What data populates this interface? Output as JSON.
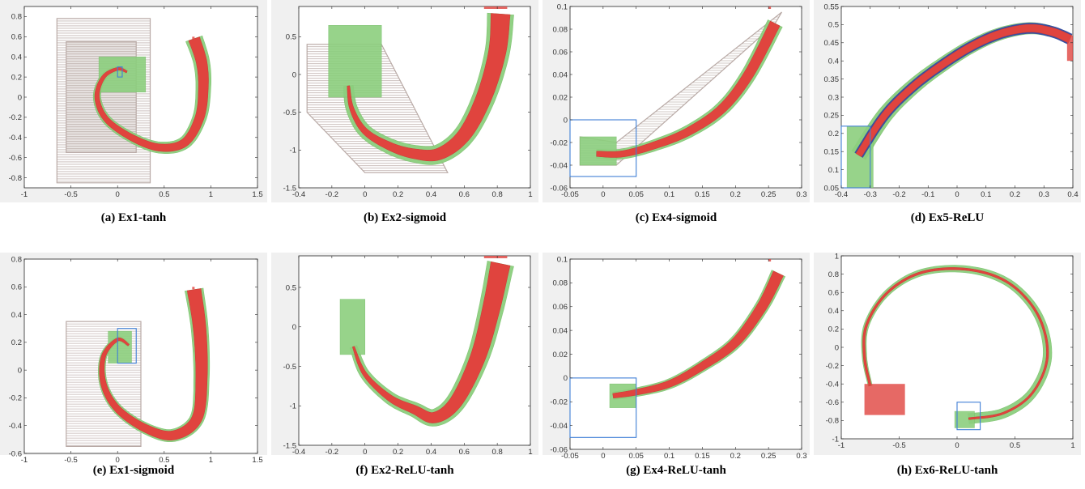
{
  "colors": {
    "reach_fill": "#e0443e",
    "reach_edge": "#c93a35",
    "bloat": "#8ccf7e",
    "bloat_edge": "#7cc26e",
    "baseline": "#b9aaa6",
    "init_box": "#3f7fd6",
    "relu_outline": "#3a4fa0",
    "axes_bg": "#f0f0f0",
    "plot_bg": "#ffffff"
  },
  "chart_data": [
    {
      "id": "a",
      "caption": "(a) Ex1-tanh",
      "type": "scatter",
      "xlim": [
        -1,
        1.5
      ],
      "ylim": [
        -0.9,
        0.9
      ],
      "xticks": [
        -1,
        -0.5,
        0,
        0.5,
        1,
        1.5
      ],
      "yticks": [
        -0.8,
        -0.6,
        -0.4,
        -0.2,
        0,
        0.2,
        0.4,
        0.6,
        0.8
      ],
      "xtick_labels": [
        "-1",
        "-0.5",
        "0",
        "0.5",
        "1",
        "1.5"
      ],
      "ytick_labels": [
        "-0.8",
        "-0.6",
        "-0.4",
        "-0.2",
        "0",
        "0.2",
        "0.4",
        "0.6",
        "0.8"
      ],
      "initial_set": [
        [
          0,
          0.05
        ],
        [
          0.2,
          0.3
        ]
      ],
      "trajectory": [
        [
          0.1,
          0.25
        ],
        [
          0,
          0.28
        ],
        [
          -0.15,
          0.2
        ],
        [
          -0.22,
          0
        ],
        [
          -0.12,
          -0.22
        ],
        [
          0.15,
          -0.4
        ],
        [
          0.45,
          -0.5
        ],
        [
          0.72,
          -0.45
        ],
        [
          0.88,
          -0.2
        ],
        [
          0.92,
          0.1
        ],
        [
          0.9,
          0.35
        ],
        [
          0.82,
          0.58
        ]
      ],
      "tube_width": [
        0.01,
        0.12
      ],
      "bloat_width": [
        0.04,
        0.18
      ],
      "bloat_box": [
        [
          -0.2,
          0.3
        ],
        [
          0.05,
          0.4
        ]
      ],
      "baseline_envelope": [
        [
          [
            -0.65,
            0.78
          ],
          [
            0.35,
            0.78
          ],
          [
            0.35,
            -0.85
          ],
          [
            -0.65,
            -0.85
          ]
        ],
        [
          [
            -0.55,
            0.55
          ],
          [
            0.2,
            0.55
          ],
          [
            0.2,
            -0.55
          ],
          [
            -0.55,
            -0.55
          ]
        ]
      ],
      "tip_box": [
        [
          0.8,
          0.55
        ],
        [
          0.9,
          0.6
        ]
      ]
    },
    {
      "id": "b",
      "caption": "(b) Ex2-sigmoid",
      "type": "scatter",
      "xlim": [
        -0.4,
        1
      ],
      "ylim": [
        -1.5,
        0.9
      ],
      "xticks": [
        -0.4,
        -0.2,
        0,
        0.2,
        0.4,
        0.6,
        0.8,
        1
      ],
      "yticks": [
        -1.5,
        -1,
        -0.5,
        0,
        0.5
      ],
      "xtick_labels": [
        "-0.4",
        "-0.2",
        "0",
        "0.2",
        "0.4",
        "0.6",
        "0.8",
        "1"
      ],
      "ytick_labels": [
        "-1.5",
        "-1",
        "-0.5",
        "0",
        "0.5"
      ],
      "initial_set": [
        [
          -0.3,
          -0.35
        ],
        [
          0.1,
          0.5
        ]
      ],
      "trajectory": [
        [
          -0.1,
          -0.15
        ],
        [
          -0.08,
          -0.45
        ],
        [
          0,
          -0.75
        ],
        [
          0.15,
          -0.95
        ],
        [
          0.3,
          -1.05
        ],
        [
          0.45,
          -1.05
        ],
        [
          0.6,
          -0.8
        ],
        [
          0.72,
          -0.3
        ],
        [
          0.8,
          0.3
        ],
        [
          0.82,
          0.8
        ]
      ],
      "tube_width": [
        0.02,
        0.16
      ],
      "bloat_width": [
        0.08,
        0.22
      ],
      "bloat_box": [
        [
          -0.22,
          0.1
        ],
        [
          -0.3,
          0.65
        ]
      ],
      "baseline_envelope": [
        [
          [
            -0.35,
            0.4
          ],
          [
            0.1,
            0.4
          ],
          [
            0.5,
            -1.3
          ],
          [
            0.0,
            -1.3
          ],
          [
            -0.35,
            -0.5
          ]
        ]
      ],
      "tip_box": [
        [
          0.72,
          0.86
        ],
        [
          0.9,
          0.9
        ]
      ]
    },
    {
      "id": "c",
      "caption": "(c) Ex4-sigmoid",
      "type": "scatter",
      "xlim": [
        -0.05,
        0.3
      ],
      "ylim": [
        -0.06,
        0.1
      ],
      "xticks": [
        -0.05,
        0,
        0.05,
        0.1,
        0.15,
        0.2,
        0.25,
        0.3
      ],
      "yticks": [
        -0.06,
        -0.04,
        -0.02,
        0,
        0.02,
        0.04,
        0.06,
        0.08,
        0.1
      ],
      "xtick_labels": [
        "-0.05",
        "0",
        "0.05",
        "0.1",
        "0.15",
        "0.2",
        "0.25",
        "0.3"
      ],
      "ytick_labels": [
        "-0.06",
        "-0.04",
        "-0.02",
        "0",
        "0.02",
        "0.04",
        "0.06",
        "0.08",
        "0.1"
      ],
      "initial_set": [
        [
          -0.05,
          0.05
        ],
        [
          -0.05,
          0
        ]
      ],
      "trajectory": [
        [
          -0.01,
          -0.03
        ],
        [
          0.03,
          -0.03
        ],
        [
          0.08,
          -0.022
        ],
        [
          0.13,
          -0.01
        ],
        [
          0.18,
          0.01
        ],
        [
          0.22,
          0.04
        ],
        [
          0.26,
          0.085
        ]
      ],
      "tube_width": [
        0.006,
        0.012
      ],
      "bloat_width": [
        0.01,
        0.018
      ],
      "bloat_box": [
        [
          -0.035,
          0.02
        ],
        [
          -0.04,
          -0.015
        ]
      ],
      "baseline_envelope": [
        [
          [
            -0.035,
            -0.015
          ],
          [
            0.02,
            -0.02
          ],
          [
            0.27,
            0.095
          ],
          [
            0.26,
            0.085
          ],
          [
            0.02,
            -0.04
          ],
          [
            -0.035,
            -0.04
          ]
        ]
      ],
      "tip_box": [
        [
          0.25,
          0.09
        ],
        [
          0.27,
          0.1
        ]
      ]
    },
    {
      "id": "d",
      "caption": "(d) Ex5-ReLU",
      "type": "scatter",
      "xlim": [
        -0.4,
        0.4
      ],
      "ylim": [
        0.05,
        0.55
      ],
      "xticks": [
        -0.4,
        -0.3,
        -0.2,
        -0.1,
        0,
        0.1,
        0.2,
        0.3,
        0.4
      ],
      "yticks": [
        0.05,
        0.1,
        0.15,
        0.2,
        0.25,
        0.3,
        0.35,
        0.4,
        0.45,
        0.5,
        0.55
      ],
      "xtick_labels": [
        "-0.4",
        "-0.3",
        "-0.2",
        "-0.1",
        "0",
        "0.1",
        "0.2",
        "0.3",
        "0.4"
      ],
      "ytick_labels": [
        "0.05",
        "0.1",
        "0.15",
        "0.2",
        "0.25",
        "0.3",
        "0.35",
        "0.4",
        "0.45",
        "0.5",
        "0.55"
      ],
      "initial_set": [
        [
          -0.4,
          -0.3
        ],
        [
          0.05,
          0.22
        ]
      ],
      "trajectory": [
        [
          -0.34,
          0.14
        ],
        [
          -0.25,
          0.25
        ],
        [
          -0.15,
          0.33
        ],
        [
          -0.05,
          0.39
        ],
        [
          0.05,
          0.44
        ],
        [
          0.15,
          0.475
        ],
        [
          0.25,
          0.49
        ],
        [
          0.33,
          0.48
        ],
        [
          0.39,
          0.46
        ]
      ],
      "tube_width": [
        0.02,
        0.025
      ],
      "bloat_width": [
        0.05,
        0.03
      ],
      "bloat_box": [
        [
          -0.38,
          -0.29
        ],
        [
          0.05,
          0.22
        ]
      ],
      "baseline_envelope": [],
      "tip_box": [
        [
          0.38,
          0.45
        ],
        [
          0.4,
          0.47
        ]
      ]
    },
    {
      "id": "e",
      "caption": "(e) Ex1-sigmoid",
      "type": "scatter",
      "xlim": [
        -1,
        1.5
      ],
      "ylim": [
        -0.6,
        0.8
      ],
      "xticks": [
        -1,
        -0.5,
        0,
        0.5,
        1,
        1.5
      ],
      "yticks": [
        -0.6,
        -0.4,
        -0.2,
        0,
        0.2,
        0.4,
        0.6,
        0.8
      ],
      "xtick_labels": [
        "-1",
        "-0.5",
        "0",
        "0.5",
        "1",
        "1.5"
      ],
      "ytick_labels": [
        "-0.6",
        "-0.4",
        "-0.2",
        "0",
        "0.2",
        "0.4",
        "0.6",
        "0.8"
      ],
      "initial_set": [
        [
          0,
          0.2
        ],
        [
          0.05,
          0.3
        ]
      ],
      "trajectory": [
        [
          0.12,
          0.18
        ],
        [
          0,
          0.22
        ],
        [
          -0.15,
          0.1
        ],
        [
          -0.15,
          -0.1
        ],
        [
          0,
          -0.28
        ],
        [
          0.3,
          -0.42
        ],
        [
          0.6,
          -0.47
        ],
        [
          0.85,
          -0.35
        ],
        [
          0.9,
          -0.05
        ],
        [
          0.88,
          0.3
        ],
        [
          0.82,
          0.58
        ]
      ],
      "tube_width": [
        0.01,
        0.12
      ],
      "bloat_width": [
        0.03,
        0.16
      ],
      "bloat_box": [
        [
          -0.1,
          0.15
        ],
        [
          0.05,
          0.28
        ]
      ],
      "baseline_envelope": [
        [
          [
            -0.55,
            0.35
          ],
          [
            0.25,
            0.35
          ],
          [
            0.25,
            -0.55
          ],
          [
            -0.55,
            -0.55
          ]
        ]
      ],
      "tip_box": [
        [
          0.8,
          0.55
        ],
        [
          0.9,
          0.6
        ]
      ]
    },
    {
      "id": "f",
      "caption": "(f) Ex2-ReLU-tanh",
      "type": "scatter",
      "xlim": [
        -0.4,
        1
      ],
      "ylim": [
        -1.5,
        0.9
      ],
      "xticks": [
        -0.4,
        -0.2,
        0,
        0.2,
        0.4,
        0.6,
        0.8,
        1
      ],
      "yticks": [
        -1.5,
        -1,
        -0.5,
        0,
        0.5
      ],
      "xtick_labels": [
        "-0.4",
        "-0.2",
        "0",
        "0.2",
        "0.4",
        "0.6",
        "0.8",
        "1"
      ],
      "ytick_labels": [
        "-1.5",
        "-1",
        "-0.5",
        "0",
        "0.5"
      ],
      "initial_set": [
        [
          -0.3,
          -0.35
        ],
        [
          0.1,
          0.5
        ]
      ],
      "trajectory": [
        [
          -0.07,
          -0.25
        ],
        [
          0,
          -0.6
        ],
        [
          0.15,
          -0.9
        ],
        [
          0.3,
          -1.05
        ],
        [
          0.42,
          -1.15
        ],
        [
          0.55,
          -0.95
        ],
        [
          0.68,
          -0.4
        ],
        [
          0.76,
          0.2
        ],
        [
          0.82,
          0.8
        ]
      ],
      "tube_width": [
        0.01,
        0.16
      ],
      "bloat_width": [
        0.06,
        0.22
      ],
      "bloat_box": [
        [
          -0.15,
          0.0
        ],
        [
          -0.35,
          0.35
        ]
      ],
      "baseline_envelope": [],
      "tip_box": [
        [
          0.72,
          0.86
        ],
        [
          0.9,
          0.9
        ]
      ]
    },
    {
      "id": "g",
      "caption": "(g) Ex4-ReLU-tanh",
      "type": "scatter",
      "xlim": [
        -0.05,
        0.3
      ],
      "ylim": [
        -0.06,
        0.1
      ],
      "xticks": [
        -0.05,
        0,
        0.05,
        0.1,
        0.15,
        0.2,
        0.25,
        0.3
      ],
      "yticks": [
        -0.06,
        -0.04,
        -0.02,
        0,
        0.02,
        0.04,
        0.06,
        0.08,
        0.1
      ],
      "xtick_labels": [
        "-0.05",
        "0",
        "0.05",
        "0.1",
        "0.15",
        "0.2",
        "0.25",
        "0.3"
      ],
      "ytick_labels": [
        "-0.06",
        "-0.04",
        "-0.02",
        "0",
        "0.02",
        "0.04",
        "0.06",
        "0.08",
        "0.1"
      ],
      "initial_set": [
        [
          -0.05,
          0.05
        ],
        [
          -0.05,
          0
        ]
      ],
      "trajectory": [
        [
          0.015,
          -0.015
        ],
        [
          0.05,
          -0.012
        ],
        [
          0.1,
          -0.005
        ],
        [
          0.15,
          0.01
        ],
        [
          0.2,
          0.03
        ],
        [
          0.24,
          0.06
        ],
        [
          0.265,
          0.088
        ]
      ],
      "tube_width": [
        0.005,
        0.012
      ],
      "bloat_width": [
        0.008,
        0.016
      ],
      "bloat_box": [
        [
          0.01,
          0.05
        ],
        [
          -0.025,
          -0.005
        ]
      ],
      "baseline_envelope": [],
      "tip_box": [
        [
          0.25,
          0.09
        ],
        [
          0.27,
          0.1
        ]
      ]
    },
    {
      "id": "h",
      "caption": "(h) Ex6-ReLU-tanh",
      "type": "scatter",
      "xlim": [
        -1,
        1
      ],
      "ylim": [
        -1,
        1
      ],
      "xticks": [
        -1,
        -0.5,
        0,
        0.5,
        1
      ],
      "yticks": [
        -1,
        -0.8,
        -0.6,
        -0.4,
        -0.2,
        0,
        0.2,
        0.4,
        0.6,
        0.8,
        1
      ],
      "xtick_labels": [
        "-1",
        "-0.5",
        "0",
        "0.5",
        "1"
      ],
      "ytick_labels": [
        "-1",
        "-0.8",
        "-0.6",
        "-0.4",
        "-0.2",
        "0",
        "0.2",
        "0.4",
        "0.6",
        "0.8",
        "1"
      ],
      "initial_set": [
        [
          0,
          0.2
        ],
        [
          -0.9,
          -0.6
        ]
      ],
      "trajectory": [
        [
          0.1,
          -0.78
        ],
        [
          0.4,
          -0.72
        ],
        [
          0.65,
          -0.5
        ],
        [
          0.78,
          -0.1
        ],
        [
          0.7,
          0.35
        ],
        [
          0.45,
          0.7
        ],
        [
          0.1,
          0.85
        ],
        [
          -0.3,
          0.82
        ],
        [
          -0.6,
          0.6
        ],
        [
          -0.78,
          0.25
        ],
        [
          -0.8,
          -0.1
        ],
        [
          -0.75,
          -0.42
        ]
      ],
      "tube_width": [
        0.01,
        0.015
      ],
      "bloat_width": [
        0.1,
        0.015
      ],
      "bloat_box": [
        [
          -0.02,
          0.15
        ],
        [
          -0.88,
          -0.7
        ]
      ],
      "baseline_envelope": [],
      "tip_box": [
        [
          -0.8,
          -0.45
        ],
        [
          -0.74,
          -0.4
        ]
      ]
    }
  ]
}
